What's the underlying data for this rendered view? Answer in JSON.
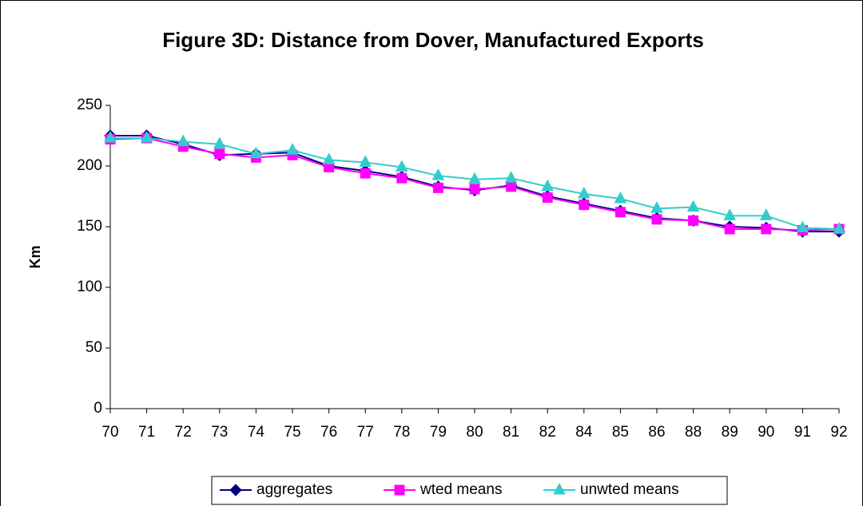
{
  "chart_data": {
    "type": "line",
    "title": "Figure 3D: Distance from Dover, Manufactured Exports",
    "y_label": "Km",
    "categories": [
      "70",
      "71",
      "72",
      "73",
      "74",
      "75",
      "76",
      "77",
      "78",
      "79",
      "80",
      "81",
      "82",
      "84",
      "85",
      "86",
      "88",
      "89",
      "90",
      "91",
      "92"
    ],
    "series": [
      {
        "name": "aggregates",
        "color": "#000080",
        "marker": "diamond",
        "values": [
          225,
          225,
          218,
          209,
          210,
          211,
          200,
          196,
          191,
          183,
          180,
          184,
          175,
          169,
          163,
          157,
          155,
          150,
          149,
          146,
          146
        ]
      },
      {
        "name": "wted means",
        "color": "#ff00ff",
        "marker": "square",
        "values": [
          222,
          223,
          216,
          210,
          207,
          209,
          199,
          194,
          190,
          182,
          181,
          183,
          174,
          168,
          162,
          156,
          155,
          148,
          148,
          147,
          148
        ]
      },
      {
        "name": "unwted means",
        "color": "#33cccc",
        "marker": "triangle",
        "values": [
          223,
          223,
          220,
          218,
          210,
          213,
          205,
          203,
          199,
          192,
          189,
          190,
          183,
          177,
          173,
          165,
          166,
          159,
          159,
          149,
          148
        ]
      }
    ],
    "ylim": [
      0,
      250
    ],
    "yticks": [
      0,
      50,
      100,
      150,
      200,
      250
    ],
    "legend": "bottom"
  }
}
